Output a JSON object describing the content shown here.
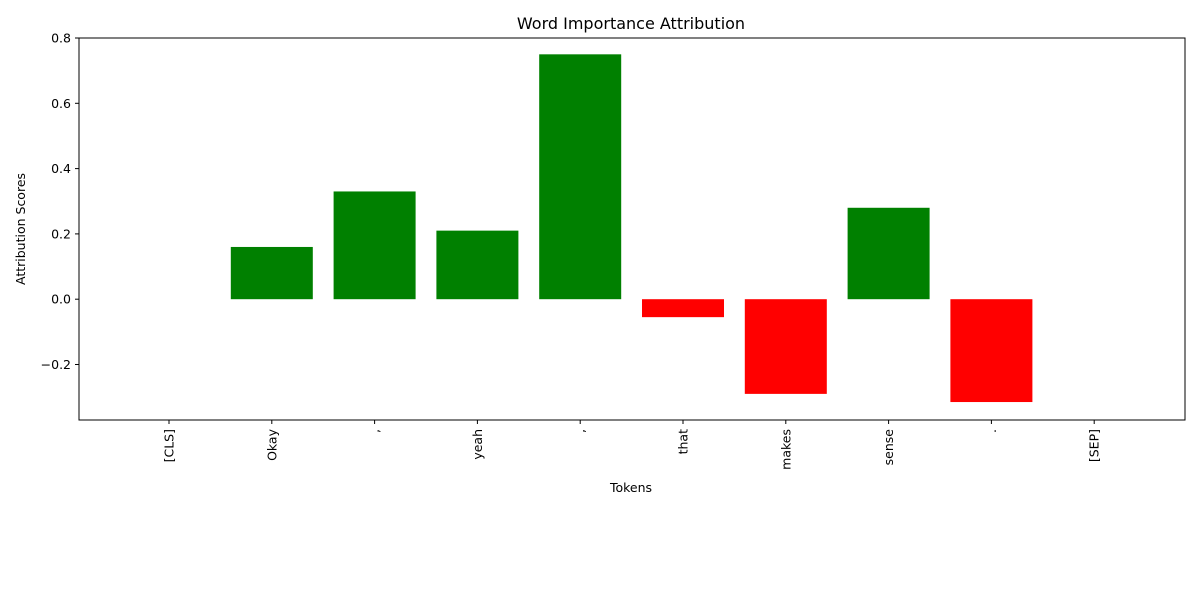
{
  "chart_data": {
    "type": "bar",
    "title": "Word Importance Attribution",
    "xlabel": "Tokens",
    "ylabel": "Attribution Scores",
    "categories": [
      "[CLS]",
      "Okay",
      ",",
      "yeah",
      ",",
      "that",
      "makes",
      "sense",
      ".",
      "[SEP]"
    ],
    "values": [
      0.0,
      0.16,
      0.33,
      0.21,
      0.75,
      -0.055,
      -0.29,
      0.28,
      -0.315,
      0.0
    ],
    "ylim": [
      -0.37,
      0.8
    ],
    "yticks": [
      -0.2,
      0.0,
      0.2,
      0.4,
      0.6,
      0.8
    ],
    "ytick_labels": [
      "−0.2",
      "0.0",
      "0.2",
      "0.4",
      "0.6",
      "0.8"
    ],
    "colors": {
      "positive": "#008000",
      "negative": "#ff0000"
    },
    "grid": false,
    "legend": "none"
  }
}
